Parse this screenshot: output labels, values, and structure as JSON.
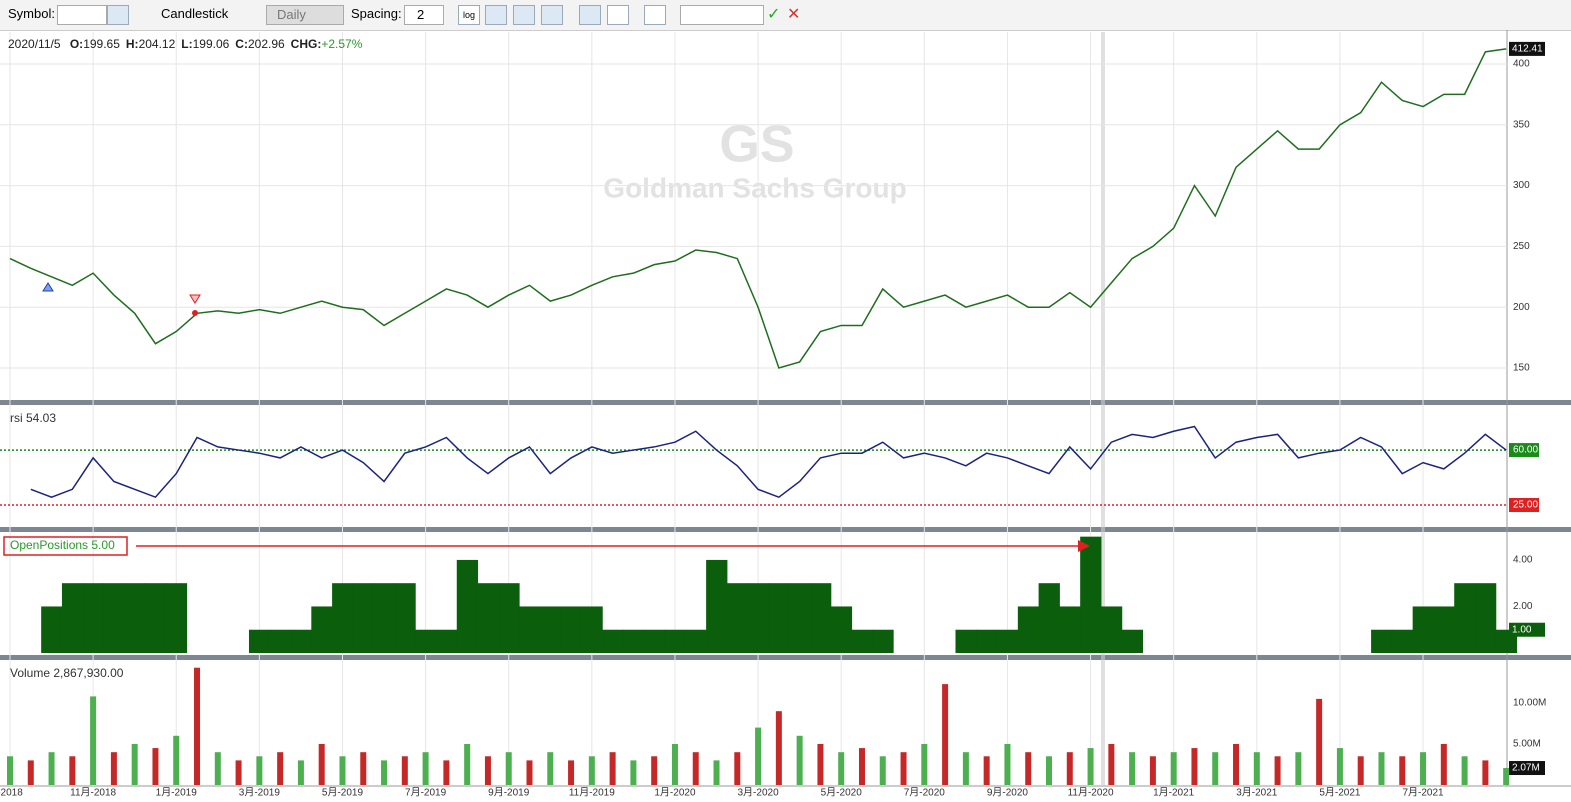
{
  "toolbar": {
    "symbol_label": "Symbol:",
    "chart_style": "Candlestick",
    "period": "Daily",
    "spacing_label": "Spacing:",
    "spacing_value": "2",
    "log_button": "log"
  },
  "legend": {
    "date": "2020/11/5",
    "items": [
      {
        "key": "O:",
        "value": "199.65"
      },
      {
        "key": "H:",
        "value": "204.12"
      },
      {
        "key": "L:",
        "value": "199.06"
      },
      {
        "key": "C:",
        "value": "202.96"
      },
      {
        "key": "CHG:",
        "value": "+2.57%"
      }
    ]
  },
  "watermark": {
    "symbol": "GS",
    "name": "Goldman Sachs Group"
  },
  "chart_data": [
    {
      "type": "line",
      "color": "#1e6e1e",
      "categories": [
        "-2018",
        null,
        null,
        null,
        "11月-2018",
        null,
        null,
        null,
        "1月-2019",
        null,
        null,
        null,
        "3月-2019",
        null,
        null,
        null,
        "5月-2019",
        null,
        null,
        null,
        "7月-2019",
        null,
        null,
        null,
        "9月-2019",
        null,
        null,
        null,
        "11月-2019",
        null,
        null,
        null,
        "1月-2020",
        null,
        null,
        null,
        "3月-2020",
        null,
        null,
        null,
        "5月-2020",
        null,
        null,
        null,
        "7月-2020",
        null,
        null,
        null,
        "9月-2020",
        null,
        null,
        null,
        "11月-2020",
        null,
        null,
        null,
        "1月-2021",
        null,
        null,
        null,
        "3月-2021",
        null,
        null,
        null,
        "5月-2021",
        null,
        null,
        null,
        "7月-2021",
        null,
        null,
        null,
        null
      ],
      "values": [
        240,
        232,
        225,
        218,
        228,
        210,
        195,
        170,
        180,
        195,
        197,
        195,
        198,
        195,
        200,
        205,
        200,
        198,
        185,
        195,
        205,
        215,
        210,
        200,
        210,
        218,
        205,
        210,
        218,
        225,
        228,
        235,
        238,
        247,
        245,
        240,
        200,
        150,
        155,
        180,
        185,
        185,
        215,
        200,
        205,
        210,
        200,
        205,
        210,
        200,
        200,
        212,
        200,
        220,
        240,
        250,
        265,
        300,
        275,
        315,
        330,
        345,
        330,
        330,
        350,
        360,
        385,
        370,
        365,
        375,
        375,
        410,
        412.41
      ],
      "ylim": [
        123.7,
        426.3
      ],
      "yticks": [
        150,
        200,
        250,
        300,
        350,
        400
      ],
      "grid": true
    },
    {
      "type": "line",
      "label": "rsi 54.03",
      "color": "#1a237e",
      "values": [
        null,
        35,
        30,
        35,
        55,
        40,
        35,
        30,
        45,
        68,
        62,
        60,
        58,
        55,
        62,
        55,
        60,
        52,
        40,
        58,
        62,
        68,
        55,
        45,
        55,
        62,
        45,
        55,
        62,
        58,
        60,
        62,
        65,
        72,
        60,
        50,
        35,
        30,
        40,
        55,
        58,
        58,
        65,
        55,
        58,
        55,
        50,
        58,
        55,
        50,
        45,
        62,
        48,
        65,
        70,
        68,
        72,
        75,
        55,
        65,
        68,
        70,
        55,
        58,
        60,
        68,
        62,
        45,
        52,
        48,
        58,
        70,
        60
      ],
      "ylim": [
        11,
        88.7
      ],
      "yticks": [
        {
          "value": 60,
          "label": "60.00"
        },
        {
          "value": 25,
          "label": "25.00"
        }
      ],
      "tick_colors": [
        "#1a8a1a",
        "#e02020"
      ]
    },
    {
      "type": "step",
      "label": "OpenPositions 5.00",
      "color": "#0b5e0b",
      "values": [
        0,
        0,
        2,
        3,
        3,
        3,
        3,
        3,
        3,
        0,
        0,
        0,
        1,
        1,
        1,
        2,
        3,
        3,
        3,
        3,
        1,
        1,
        4,
        3,
        3,
        2,
        2,
        2,
        2,
        1,
        1,
        1,
        1,
        1,
        4,
        3,
        3,
        3,
        3,
        3,
        2,
        1,
        1,
        0,
        0,
        0,
        1,
        1,
        1,
        2,
        3,
        2,
        5,
        2,
        1,
        0,
        0,
        0,
        0,
        0,
        0,
        0,
        0,
        0,
        0,
        0,
        1,
        1,
        2,
        2,
        3,
        3,
        1
      ],
      "ylim": [
        0,
        5.2
      ],
      "yticks": [
        {
          "value": 4,
          "label": "4.00"
        },
        {
          "value": 2,
          "label": "2.00"
        }
      ],
      "last_label": "1.00"
    },
    {
      "type": "bar",
      "label": "Volume 2,867,930.00",
      "colors": [
        "#4caf50",
        "#c62828"
      ],
      "values": [
        3.5,
        3,
        4,
        3.5,
        10.8,
        4,
        5,
        4.5,
        6,
        14.3,
        4,
        3,
        3.5,
        4,
        3,
        5,
        3.5,
        4,
        3,
        3.5,
        4,
        3,
        5,
        3.5,
        4,
        3,
        4,
        3,
        3.5,
        4,
        3,
        3.5,
        5,
        4,
        3,
        4,
        7,
        9,
        6,
        5,
        4,
        4.5,
        3.5,
        4,
        5,
        12.3,
        4,
        3.5,
        5,
        4,
        3.5,
        4,
        4.5,
        5,
        4,
        3.5,
        4,
        4.5,
        4,
        5,
        4,
        3.5,
        4,
        10.5,
        4.5,
        3.5,
        4,
        3.5,
        4,
        5,
        3.5,
        3,
        2.07
      ],
      "ylim": [
        0,
        15.24
      ],
      "yticks": [
        {
          "value": 10,
          "label": "10.00M"
        },
        {
          "value": 5,
          "label": "5.00M"
        }
      ],
      "last_label": "2.07M"
    }
  ]
}
